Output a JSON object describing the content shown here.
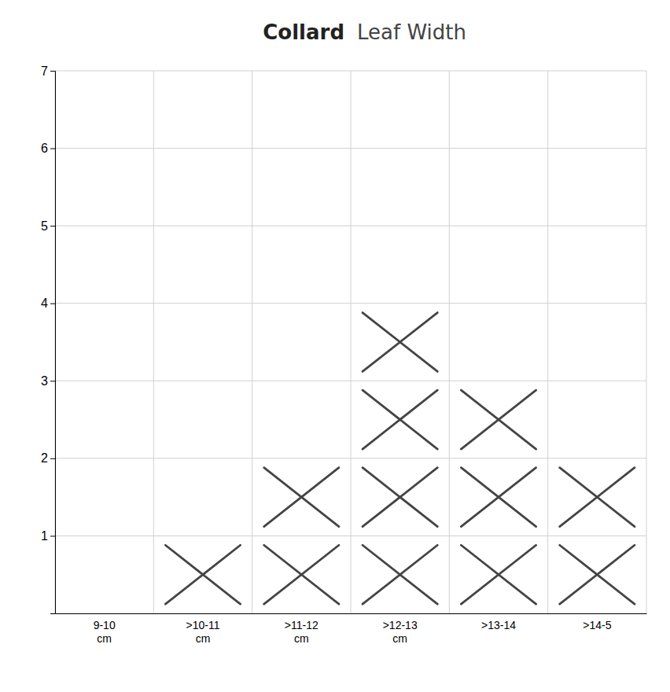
{
  "chart_data": {
    "type": "tally",
    "title": "Collard",
    "subtitle": "Leaf Width",
    "categories": [
      "9-10\ncm",
      ">10-11\ncm",
      ">11-12\ncm",
      ">12-13\ncm",
      ">13-14",
      ">14-5"
    ],
    "values": [
      0,
      1,
      2,
      4,
      3,
      2
    ],
    "color": "#444444",
    "ylim": [
      0,
      7
    ],
    "yticks": [
      1,
      2,
      3,
      4,
      5,
      6,
      7
    ],
    "grid": true
  }
}
